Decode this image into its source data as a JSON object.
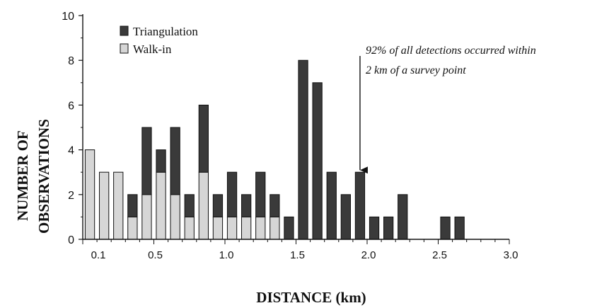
{
  "chart_data": {
    "type": "bar",
    "stacked": true,
    "title": "",
    "xlabel": "DISTANCE (km)",
    "ylabel_lines": [
      "NUMBER OF",
      "OBSERVATIONS"
    ],
    "xlim": [
      0.0,
      3.0
    ],
    "ylim": [
      0,
      10
    ],
    "x_ticks": [
      "0.1",
      "0.5",
      "1.0",
      "1.5",
      "2.0",
      "2.5",
      "3.0"
    ],
    "y_ticks": [
      "0",
      "2",
      "4",
      "6",
      "8",
      "10"
    ],
    "grid": false,
    "legend_position": "top-left",
    "bin_width": 0.1,
    "x": [
      0.05,
      0.15,
      0.25,
      0.35,
      0.45,
      0.55,
      0.65,
      0.75,
      0.85,
      0.95,
      1.05,
      1.15,
      1.25,
      1.35,
      1.45,
      1.55,
      1.65,
      1.75,
      1.85,
      1.95,
      2.05,
      2.15,
      2.25,
      2.55,
      2.65
    ],
    "series": [
      {
        "name": "Walk-in",
        "color": "#d6d6d6",
        "values": [
          4,
          3,
          3,
          1,
          2,
          3,
          2,
          1,
          3,
          1,
          1,
          1,
          1,
          1,
          0,
          0,
          0,
          0,
          0,
          0,
          0,
          0,
          0,
          0,
          0
        ]
      },
      {
        "name": "Triangulation",
        "color": "#3a3a3a",
        "values": [
          0,
          0,
          0,
          1,
          3,
          1,
          3,
          1,
          3,
          1,
          2,
          1,
          2,
          1,
          1,
          8,
          7,
          3,
          2,
          3,
          1,
          1,
          2,
          1,
          1
        ]
      }
    ],
    "legend": [
      "Triangulation",
      "Walk-in"
    ],
    "annotation": {
      "lines": [
        "92% of all detections occurred within",
        "2 km of a survey point"
      ],
      "arrow_target_x": 1.95,
      "arrow_target_y": 3
    }
  }
}
